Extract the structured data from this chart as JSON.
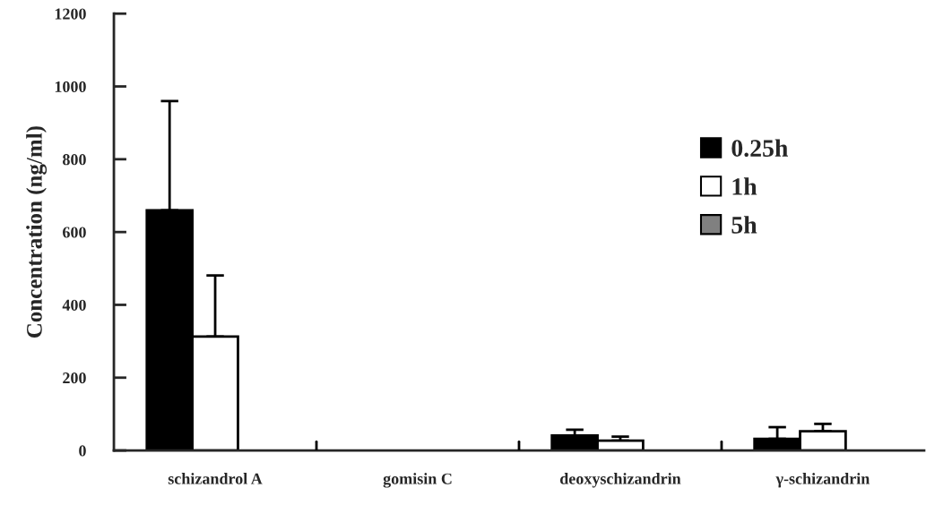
{
  "chart_data": {
    "type": "bar",
    "ylabel": "Concentration (ng/ml)",
    "categories": [
      "schizandrol A",
      "gomisin C",
      "deoxyschizandrin",
      "γ-schizandrin"
    ],
    "series": [
      {
        "name": "0.25h",
        "color": "#000000",
        "values": [
          660,
          null,
          41,
          32
        ],
        "errors": [
          [
            660,
            960
          ],
          null,
          [
            41,
            57
          ],
          [
            32,
            64
          ]
        ]
      },
      {
        "name": "1h",
        "color": "#ffffff",
        "values": [
          313,
          null,
          27,
          53
        ],
        "errors": [
          [
            313,
            481
          ],
          null,
          [
            27,
            38
          ],
          [
            53,
            73
          ]
        ]
      },
      {
        "name": "5h",
        "color": "#808080",
        "values": [
          null,
          null,
          null,
          null
        ]
      }
    ],
    "ylim": [
      0,
      1200
    ],
    "yticks": [
      0,
      200,
      400,
      600,
      800,
      1000,
      1200
    ],
    "grid": false,
    "legend": "right"
  }
}
